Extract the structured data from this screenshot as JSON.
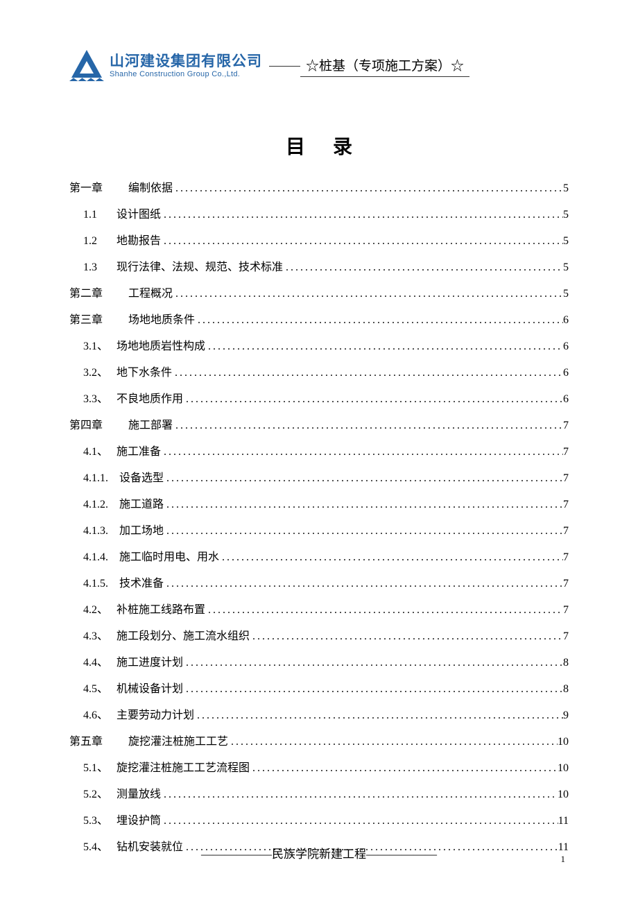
{
  "header": {
    "logo_text_cn": "山河建设集团有限公司",
    "logo_text_en": "Shanhe Construction Group Co.,Ltd.",
    "title": "☆桩基（专项施工方案）☆"
  },
  "toc_title": "目录",
  "toc": [
    {
      "num": "第一章",
      "label": "编制依据",
      "page": "5",
      "level": 1
    },
    {
      "num": "1.1",
      "label": "设计图纸",
      "page": "5",
      "level": 2
    },
    {
      "num": "1.2",
      "label": "地勘报告",
      "page": "5",
      "level": 2
    },
    {
      "num": "1.3",
      "label": "现行法律、法规、规范、技术标准",
      "page": "5",
      "level": 2
    },
    {
      "num": "第二章",
      "label": "工程概况",
      "page": "5",
      "level": 1
    },
    {
      "num": "第三章",
      "label": "场地地质条件",
      "page": "6",
      "level": 1
    },
    {
      "num": "3.1、",
      "label": "场地地质岩性构成",
      "page": "6",
      "level": 2
    },
    {
      "num": "3.2、",
      "label": "地下水条件",
      "page": "6",
      "level": 2
    },
    {
      "num": "3.3、",
      "label": "不良地质作用",
      "page": "6",
      "level": 2
    },
    {
      "num": "第四章",
      "label": "施工部署",
      "page": "7",
      "level": 1
    },
    {
      "num": "4.1、",
      "label": "施工准备",
      "page": "7",
      "level": 2
    },
    {
      "num": "4.1.1.",
      "label": "设备选型",
      "page": "7",
      "level": 3
    },
    {
      "num": "4.1.2.",
      "label": "施工道路",
      "page": "7",
      "level": 3
    },
    {
      "num": "4.1.3.",
      "label": "加工场地",
      "page": "7",
      "level": 3
    },
    {
      "num": "4.1.4.",
      "label": "施工临时用电、用水",
      "page": "7",
      "level": 3
    },
    {
      "num": "4.1.5.",
      "label": "技术准备",
      "page": "7",
      "level": 3
    },
    {
      "num": "4.2、",
      "label": "补桩施工线路布置",
      "page": "7",
      "level": 2
    },
    {
      "num": "4.3、",
      "label": "施工段划分、施工流水组织",
      "page": "7",
      "level": 2
    },
    {
      "num": "4.4、",
      "label": "施工进度计划",
      "page": "8",
      "level": 2
    },
    {
      "num": "4.5、",
      "label": "机械设备计划",
      "page": "8",
      "level": 2
    },
    {
      "num": "4.6、",
      "label": "主要劳动力计划",
      "page": "9",
      "level": 2
    },
    {
      "num": "第五章",
      "label": "旋挖灌注桩施工工艺",
      "page": "10",
      "level": 1
    },
    {
      "num": "5.1、",
      "label": "旋挖灌注桩施工工艺流程图",
      "page": "10",
      "level": 2
    },
    {
      "num": "5.2、",
      "label": "测量放线",
      "page": "10",
      "level": 2
    },
    {
      "num": "5.3、",
      "label": "埋设护筒",
      "page": "11",
      "level": 2
    },
    {
      "num": "5.4、",
      "label": "钻机安装就位",
      "page": "11",
      "level": 2
    }
  ],
  "footer": {
    "text": "——————民族学院新建工程——————",
    "page_num": "1"
  },
  "colors": {
    "logo_blue": "#2666a8",
    "text_black": "#000000",
    "background": "#ffffff"
  },
  "fonts": {
    "heading": "SimHei",
    "body": "SimSun",
    "logo_cn": "KaiTi"
  }
}
